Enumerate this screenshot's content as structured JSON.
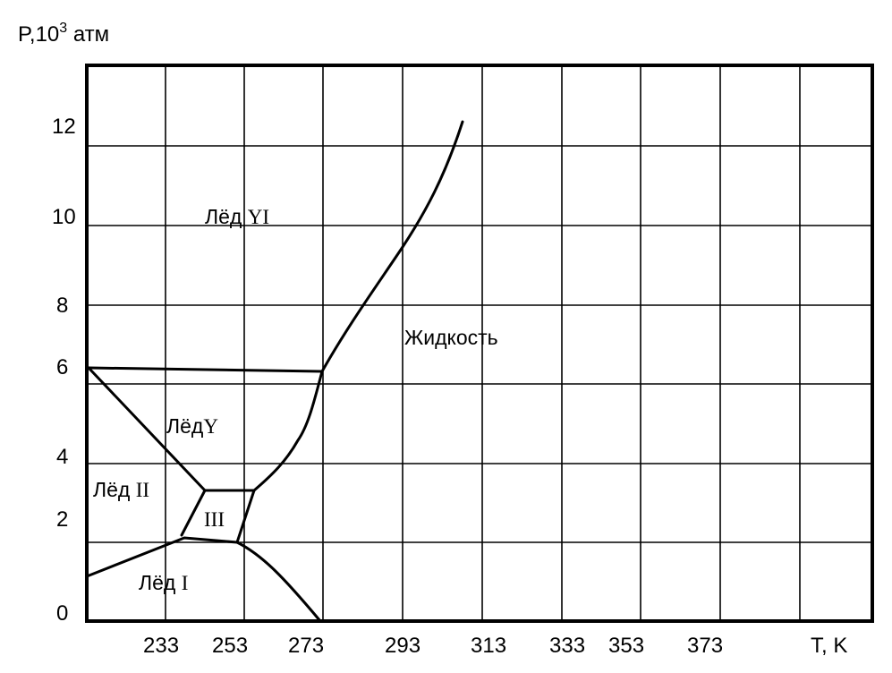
{
  "y_axis": {
    "label_prefix": "P,10",
    "label_exponent": "3",
    "label_suffix": " атм",
    "ticks": [
      "12",
      "10",
      "8",
      "6",
      "4",
      "2",
      "0"
    ]
  },
  "x_axis": {
    "label": "T, K",
    "ticks": [
      "233",
      "253",
      "273",
      "293",
      "313",
      "333",
      "353",
      "373"
    ]
  },
  "regions": {
    "ice_vi": {
      "prefix": "Лёд ",
      "roman": "YI"
    },
    "liquid": {
      "text": "Жидкость"
    },
    "ice_v": {
      "prefix": "Лёд",
      "roman": "Y"
    },
    "ice_ii": {
      "prefix": "Лёд ",
      "roman": "II"
    },
    "ice_iii": {
      "roman": "III"
    },
    "ice_i": {
      "prefix": "Лёд ",
      "roman": "I"
    }
  }
}
